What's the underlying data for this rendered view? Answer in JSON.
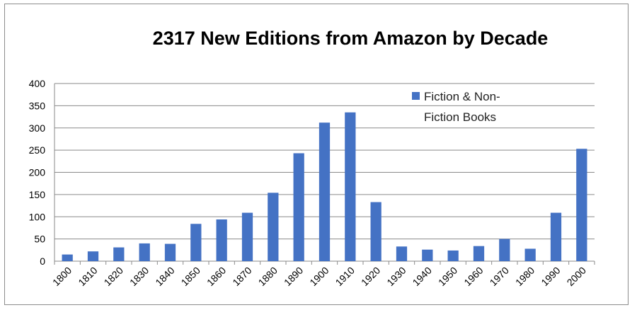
{
  "chart_data": {
    "type": "bar",
    "title": "2317 New Editions from Amazon by Decade",
    "xlabel": "",
    "ylabel": "",
    "categories": [
      "1800",
      "1810",
      "1820",
      "1830",
      "1840",
      "1850",
      "1860",
      "1870",
      "1880",
      "1890",
      "1900",
      "1910",
      "1920",
      "1930",
      "1940",
      "1950",
      "1960",
      "1970",
      "1980",
      "1990",
      "2000"
    ],
    "series": [
      {
        "name": "Fiction & Non-Fiction Books",
        "legend_lines": [
          "Fiction & Non-",
          "Fiction Books"
        ],
        "color": "#4472c4",
        "values": [
          15,
          22,
          31,
          40,
          39,
          84,
          94,
          109,
          154,
          243,
          312,
          335,
          133,
          33,
          26,
          24,
          34,
          50,
          28,
          109,
          253
        ]
      }
    ],
    "ylim": [
      0,
      400
    ],
    "yticks": [
      "0",
      "50",
      "100",
      "150",
      "200",
      "250",
      "300",
      "350",
      "400"
    ],
    "grid": true,
    "legend_position": "top-right"
  }
}
